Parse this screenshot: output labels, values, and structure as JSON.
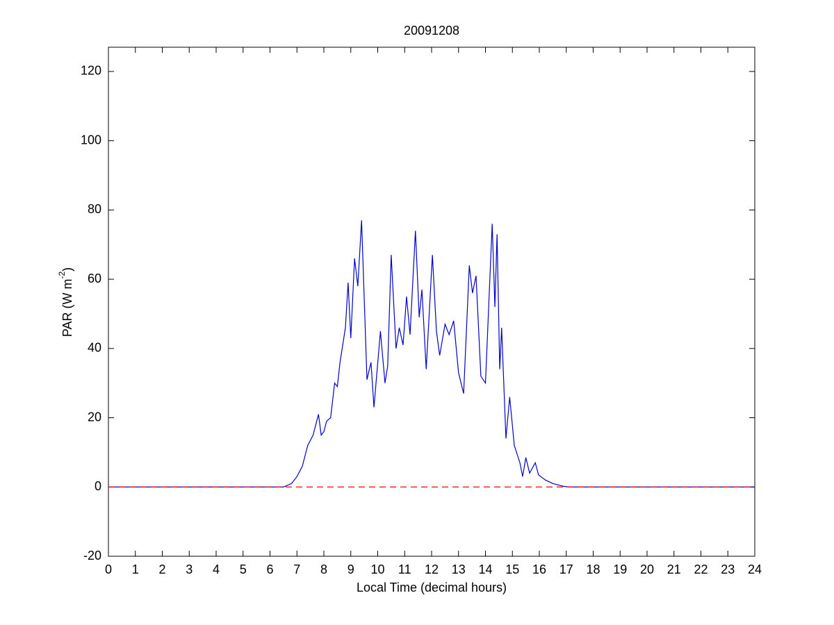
{
  "chart_data": {
    "type": "line",
    "title": "20091208",
    "xlabel": "Local Time (decimal hours)",
    "ylabel_parts": [
      "PAR (W m",
      "-2",
      ")"
    ],
    "xlim": [
      0,
      24
    ],
    "xticks": [
      0,
      1,
      2,
      3,
      4,
      5,
      6,
      7,
      8,
      9,
      10,
      11,
      12,
      13,
      14,
      15,
      16,
      17,
      18,
      19,
      20,
      21,
      22,
      23,
      24
    ],
    "ylim": [
      -20,
      127
    ],
    "yticks": [
      -20,
      0,
      20,
      40,
      60,
      80,
      100,
      120
    ],
    "hline": {
      "value": 0,
      "color": "#ff0000",
      "dash": true
    },
    "series": [
      {
        "name": "PAR",
        "color": "#0000cc",
        "x": [
          0,
          6.5,
          6.8,
          7.0,
          7.2,
          7.4,
          7.6,
          7.8,
          7.9,
          8.0,
          8.1,
          8.25,
          8.4,
          8.5,
          8.6,
          8.8,
          8.9,
          9.0,
          9.14,
          9.26,
          9.4,
          9.6,
          9.75,
          9.86,
          10.1,
          10.27,
          10.37,
          10.5,
          10.68,
          10.8,
          10.94,
          11.07,
          11.2,
          11.4,
          11.54,
          11.64,
          11.8,
          12.03,
          12.18,
          12.3,
          12.5,
          12.65,
          12.82,
          13.0,
          13.19,
          13.4,
          13.52,
          13.65,
          13.83,
          14.0,
          14.25,
          14.35,
          14.43,
          14.53,
          14.6,
          14.76,
          14.9,
          15.07,
          15.28,
          15.38,
          15.5,
          15.64,
          15.85,
          15.97,
          16.23,
          16.5,
          16.9,
          17.1,
          24
        ],
        "values": [
          0,
          0,
          1,
          3,
          6,
          12,
          15,
          21,
          15,
          16,
          19,
          20,
          30,
          29,
          36,
          46,
          59,
          43,
          66,
          58,
          77,
          31,
          36,
          23,
          45,
          30,
          35,
          67,
          40,
          46,
          41,
          55,
          44,
          74,
          49,
          57,
          34,
          67,
          45,
          38,
          47,
          44,
          48,
          33,
          27,
          64,
          56,
          61,
          32,
          30,
          76,
          52,
          73,
          34,
          46,
          14,
          26,
          12,
          7,
          3,
          8.5,
          4,
          7,
          3.5,
          2,
          1,
          0.2,
          0,
          0
        ]
      }
    ]
  }
}
